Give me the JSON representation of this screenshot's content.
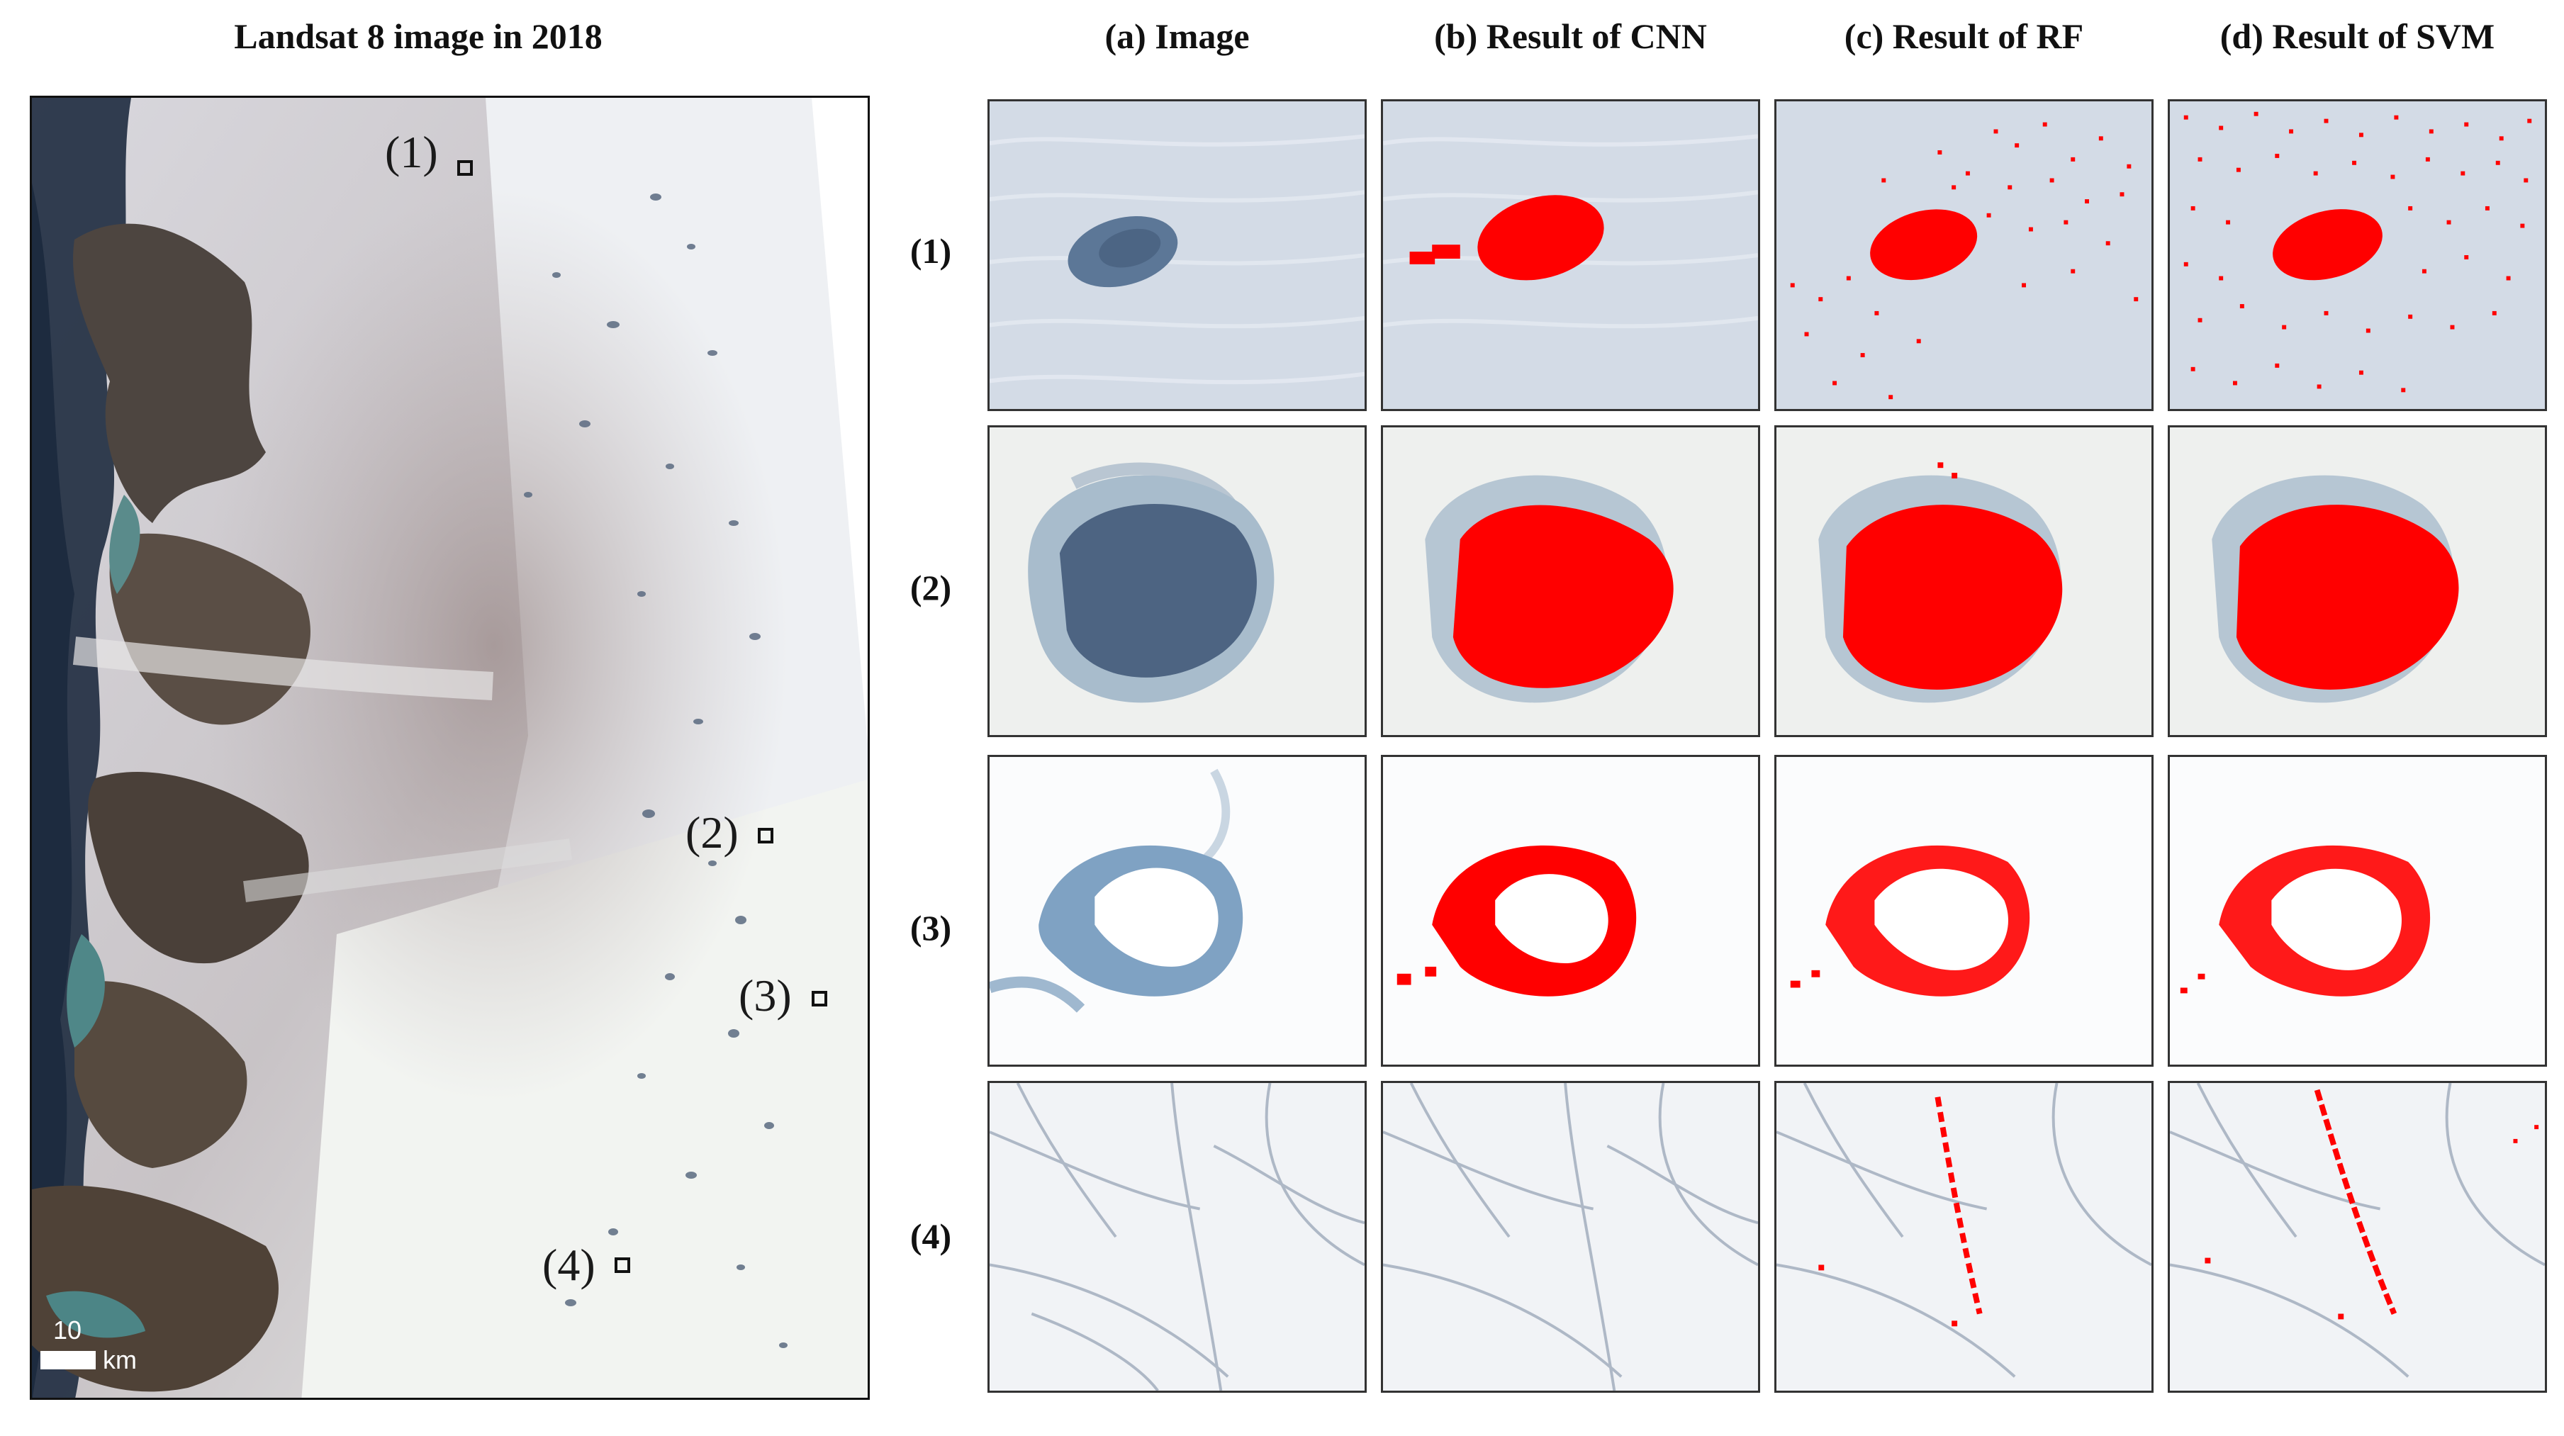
{
  "left": {
    "title": "Landsat 8 image in 2018",
    "sites": [
      "(1)",
      "(2)",
      "(3)",
      "(4)"
    ],
    "scale": {
      "value": "10",
      "unit": "km"
    }
  },
  "columns": [
    "(a) Image",
    "(b) Result of CNN",
    "(c) Result of RF",
    "(d) Result of SVM"
  ],
  "rows": [
    "(1)",
    "(2)",
    "(3)",
    "(4)"
  ],
  "colors": {
    "detection": "#ff0000",
    "lake": "#4f6f93",
    "ice": "#e9eef4"
  }
}
